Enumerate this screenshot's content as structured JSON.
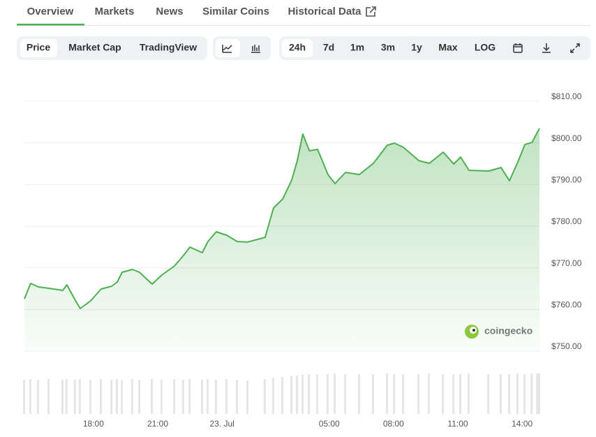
{
  "tabs": [
    {
      "label": "Overview",
      "active": true
    },
    {
      "label": "Markets",
      "active": false
    },
    {
      "label": "News",
      "active": false
    },
    {
      "label": "Similar Coins",
      "active": false
    },
    {
      "label": "Historical Data",
      "active": false
    }
  ],
  "controls": {
    "views": [
      "Price",
      "Market Cap",
      "TradingView"
    ],
    "view_active": 0,
    "ranges": [
      "24h",
      "7d",
      "1m",
      "3m",
      "1y",
      "Max",
      "LOG"
    ],
    "range_active": 0
  },
  "chart_data": {
    "type": "line",
    "watermark": "coingecko",
    "grid": true,
    "x": [
      14.78,
      15.07,
      15.43,
      15.92,
      16.57,
      16.76,
      17.15,
      17.38,
      17.87,
      18.36,
      18.85,
      19.11,
      19.34,
      19.82,
      20.15,
      20.74,
      21.19,
      21.78,
      22.2,
      22.5,
      23.08,
      23.34,
      23.73,
      24.22,
      24.71,
      25.2,
      26.01,
      26.4,
      26.83,
      27.25,
      27.51,
      27.77,
      28.07,
      28.46,
      28.94,
      29.27,
      29.76,
      30.41,
      31.06,
      31.71,
      32.04,
      32.46,
      33.18,
      33.67,
      34.32,
      34.81,
      35.13,
      35.52,
      36.44,
      37.02,
      37.41,
      37.8,
      38.13,
      38.46,
      38.72,
      38.81
    ],
    "series": [
      {
        "color": "#4caf50",
        "values": [
          762.57,
          766.26,
          765.42,
          765.08,
          764.58,
          765.92,
          762.23,
          760.22,
          762.07,
          764.92,
          765.59,
          766.59,
          768.94,
          769.61,
          768.94,
          766.09,
          768.27,
          770.45,
          772.96,
          774.97,
          773.63,
          776.31,
          778.66,
          777.82,
          776.31,
          776.2,
          777.32,
          784.36,
          786.53,
          791.06,
          795.75,
          802.12,
          798.1,
          798.43,
          792.4,
          790.22,
          792.9,
          792.4,
          795.08,
          799.44,
          799.94,
          798.94,
          795.75,
          795.08,
          797.76,
          794.91,
          796.59,
          793.41,
          793.24,
          794.08,
          790.89,
          795.42,
          799.61,
          800.1,
          802.62,
          803.46
        ]
      }
    ],
    "volume": {
      "color": "#e6e6e6",
      "ylim": [
        0,
        60
      ],
      "values": [
        49,
        50,
        49,
        50,
        49,
        50,
        49,
        50,
        49,
        50,
        49,
        50,
        49,
        50,
        49,
        50,
        49,
        50,
        49,
        50,
        49,
        50,
        49,
        50,
        49,
        48,
        50,
        52,
        53,
        54,
        55,
        56,
        57,
        57,
        57,
        58,
        57,
        57,
        57,
        58,
        57,
        57,
        57,
        58,
        57,
        57,
        57,
        58,
        57,
        57,
        57,
        58,
        57,
        58,
        58,
        58
      ]
    },
    "xlim": [
      14.78,
      38.81
    ],
    "ylim": [
      750,
      810
    ],
    "yticks": [
      {
        "value": 750,
        "label": "$750.00"
      },
      {
        "value": 760,
        "label": "$760.00"
      },
      {
        "value": 770,
        "label": "$770.00"
      },
      {
        "value": 780,
        "label": "$780.00"
      },
      {
        "value": 790,
        "label": "$790.00"
      },
      {
        "value": 800,
        "label": "$800.00"
      },
      {
        "value": 810,
        "label": "$810.00"
      }
    ],
    "xticks": [
      {
        "value": 18,
        "label": "18:00"
      },
      {
        "value": 21,
        "label": "21:00"
      },
      {
        "value": 24,
        "label": "23. Jul"
      },
      {
        "value": 29,
        "label": "05:00"
      },
      {
        "value": 32,
        "label": "08:00"
      },
      {
        "value": 35,
        "label": "11:00"
      },
      {
        "value": 38,
        "label": "14:00"
      }
    ]
  }
}
